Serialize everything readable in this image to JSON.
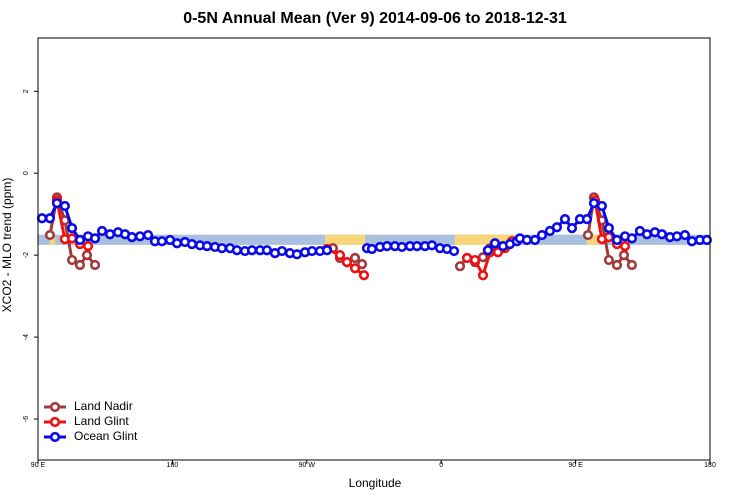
{
  "chart_data": {
    "type": "line",
    "title": "0-5N Annual Mean (Ver 9)   2014-09-06 to 2018-12-31",
    "x_label": "Longitude",
    "y_label": "XCO2 - MLO trend (ppm)",
    "xlim": [
      90,
      540
    ],
    "ylim": [
      -7,
      3.3
    ],
    "xticks": [
      {
        "value": 90,
        "label": "90 E"
      },
      180,
      {
        "value": 270,
        "label": "90 W"
      },
      {
        "value": 360,
        "label": "0"
      },
      {
        "value": 450,
        "label": "90 E"
      },
      {
        "value": 540,
        "label": "180"
      }
    ],
    "yticks": [
      -6,
      -4,
      -2,
      0,
      2
    ],
    "legend": "bottom-left",
    "bands": [
      {
        "x": [
          90,
          540
        ],
        "y": [
          -1.75,
          -1.5
        ],
        "color": "#a9c0df"
      },
      {
        "x": [
          98,
          101.4
        ],
        "y": [
          -1.75,
          -1.5
        ],
        "color": "#f8d67c"
      },
      {
        "x": [
          282.2,
          309
        ],
        "y": [
          -1.75,
          -1.5
        ],
        "color": "#f8d67c"
      },
      {
        "x": [
          369,
          409.4
        ],
        "y": [
          -1.75,
          -1.5
        ],
        "color": "#f8d67c"
      },
      {
        "x": [
          457.6,
          466.3
        ],
        "y": [
          -1.75,
          -1.5
        ],
        "color": "#f8d67c"
      }
    ],
    "series": [
      {
        "name": "Land Nadir",
        "color": "#a23a3a",
        "x": [
          98,
          102.7,
          108,
          112.8,
          118.1,
          122.8,
          128.2,
          null,
          287.5,
          292.2,
          296.9,
          302.3,
          307,
          null,
          372.6,
          377.3,
          382.6,
          388,
          392.7,
          null,
          458.3,
          462.3,
          467.6,
          472.3,
          477.7,
          482.4,
          487.7
        ],
        "values": [
          -1.51,
          -0.59,
          -1.15,
          -2.12,
          -2.24,
          -2.0,
          -2.24,
          null,
          -1.83,
          -2.07,
          -2.17,
          -2.07,
          -2.22,
          null,
          -2.27,
          -2.07,
          -2.17,
          -2.05,
          -1.83,
          null,
          -1.51,
          -0.59,
          -1.15,
          -2.12,
          -2.24,
          -2.0,
          -2.24
        ]
      },
      {
        "name": "Land Glint",
        "color": "#ee1111",
        "x": [
          102.7,
          108,
          112.8,
          118.1,
          123.5,
          null,
          283.5,
          292.2,
          296.9,
          302.3,
          308.3,
          null,
          377.3,
          382.6,
          388,
          392.7,
          398,
          402.7,
          407.4,
          null,
          463,
          467.6,
          472.3,
          477.7,
          483.1
        ],
        "values": [
          -0.66,
          -1.61,
          -1.59,
          -1.73,
          -1.78,
          null,
          -1.85,
          -2.0,
          -2.17,
          -2.32,
          -2.49,
          null,
          -2.07,
          -2.12,
          -2.49,
          -1.93,
          -1.93,
          -1.83,
          -1.66,
          null,
          -0.66,
          -1.61,
          -1.56,
          -1.73,
          -1.78
        ]
      },
      {
        "name": "Ocean Glint",
        "color": "#0a0ae6",
        "x": [
          92.7,
          98,
          102.7,
          108,
          112.8,
          118.1,
          123.5,
          128.2,
          132.9,
          138.2,
          143.6,
          148.3,
          152.9,
          158.3,
          163.7,
          168.3,
          173,
          178.4,
          183.1,
          188.4,
          193.1,
          198.5,
          203.2,
          208.5,
          213.2,
          218.6,
          223.2,
          228.6,
          233.3,
          238.7,
          243.3,
          248.7,
          253.4,
          258.7,
          263.4,
          268.8,
          273.5,
          278.8,
          283.5,
          null,
          310.3,
          313.6,
          319,
          323.7,
          329,
          333.7,
          339.1,
          343.8,
          349.1,
          353.8,
          359.2,
          363.9,
          368.6,
          null,
          391.3,
          396,
          401.4,
          406,
          410.7,
          412.7,
          417.4,
          422.8,
          427.5,
          432.8,
          437.5,
          442.9,
          447.6,
          452.9,
          457.6,
          462.3,
          467.6,
          472.3,
          477.7,
          483.1,
          487.7,
          493.1,
          497.8,
          503.1,
          507.8,
          513.2,
          517.9,
          523.2,
          527.9,
          533.2,
          537.9
        ],
        "values": [
          -1.1,
          -1.1,
          -0.73,
          -0.8,
          -1.34,
          -1.63,
          -1.54,
          -1.59,
          -1.41,
          -1.49,
          -1.44,
          -1.49,
          -1.56,
          -1.54,
          -1.51,
          -1.66,
          -1.66,
          -1.63,
          -1.71,
          -1.68,
          -1.73,
          -1.76,
          -1.78,
          -1.8,
          -1.83,
          -1.83,
          -1.88,
          -1.9,
          -1.88,
          -1.88,
          -1.88,
          -1.95,
          -1.9,
          -1.95,
          -1.98,
          -1.93,
          -1.9,
          -1.9,
          -1.88,
          null,
          -1.83,
          -1.85,
          -1.8,
          -1.78,
          -1.78,
          -1.8,
          -1.78,
          -1.78,
          -1.78,
          -1.76,
          -1.83,
          -1.85,
          -1.9,
          null,
          -1.88,
          -1.71,
          -1.78,
          -1.73,
          -1.66,
          -1.59,
          -1.63,
          -1.63,
          -1.51,
          -1.41,
          -1.32,
          -1.12,
          -1.34,
          -1.12,
          -1.12,
          -0.73,
          -0.8,
          -1.34,
          -1.63,
          -1.54,
          -1.59,
          -1.41,
          -1.49,
          -1.44,
          -1.49,
          -1.56,
          -1.54,
          -1.51,
          -1.66,
          -1.63,
          -1.63
        ]
      }
    ]
  }
}
